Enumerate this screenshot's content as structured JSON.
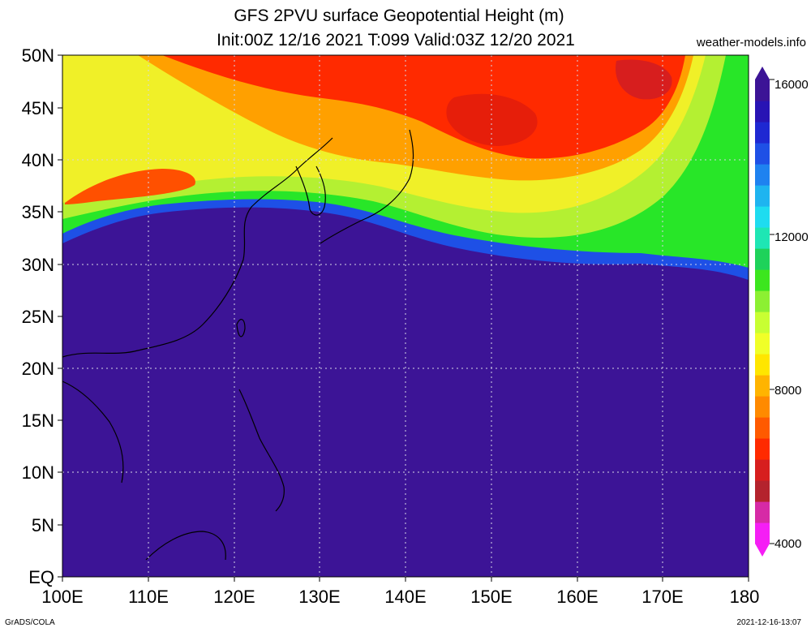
{
  "title": {
    "line1": "GFS 2PVU surface Geopotential Height (m)",
    "line2": "Init:00Z 12/16 2021 T:099 Valid:03Z 12/20 2021"
  },
  "site_label": "weather-models.info",
  "axes": {
    "lat_labels": [
      "50N",
      "45N",
      "40N",
      "35N",
      "30N",
      "25N",
      "20N",
      "15N",
      "10N",
      "5N",
      "EQ"
    ],
    "lon_labels": [
      "100E",
      "110E",
      "120E",
      "130E",
      "140E",
      "150E",
      "160E",
      "170E",
      "180"
    ]
  },
  "colorbar": {
    "labels": [
      "16000",
      "12000",
      "8000",
      "4000"
    ],
    "colors": [
      "#f51ef5",
      "#d62aa6",
      "#b4232d",
      "#d71e1e",
      "#ff2a00",
      "#ff5a00",
      "#ff8a00",
      "#ffb400",
      "#ffe600",
      "#f0ff28",
      "#c8ff32",
      "#8cf032",
      "#3ce61e",
      "#1ed25a",
      "#1ee6b4",
      "#1edcf0",
      "#1eb4f0",
      "#1e82f0",
      "#1e50e6",
      "#1e28d2",
      "#2814b4",
      "#3c1496"
    ]
  },
  "colors": {
    "background_field": "#3c1496",
    "coast": "#000000",
    "grid": "#d6d6e6"
  },
  "footer": {
    "left": "GrADS/COLA",
    "right": "2021-12-16-13:07"
  }
}
